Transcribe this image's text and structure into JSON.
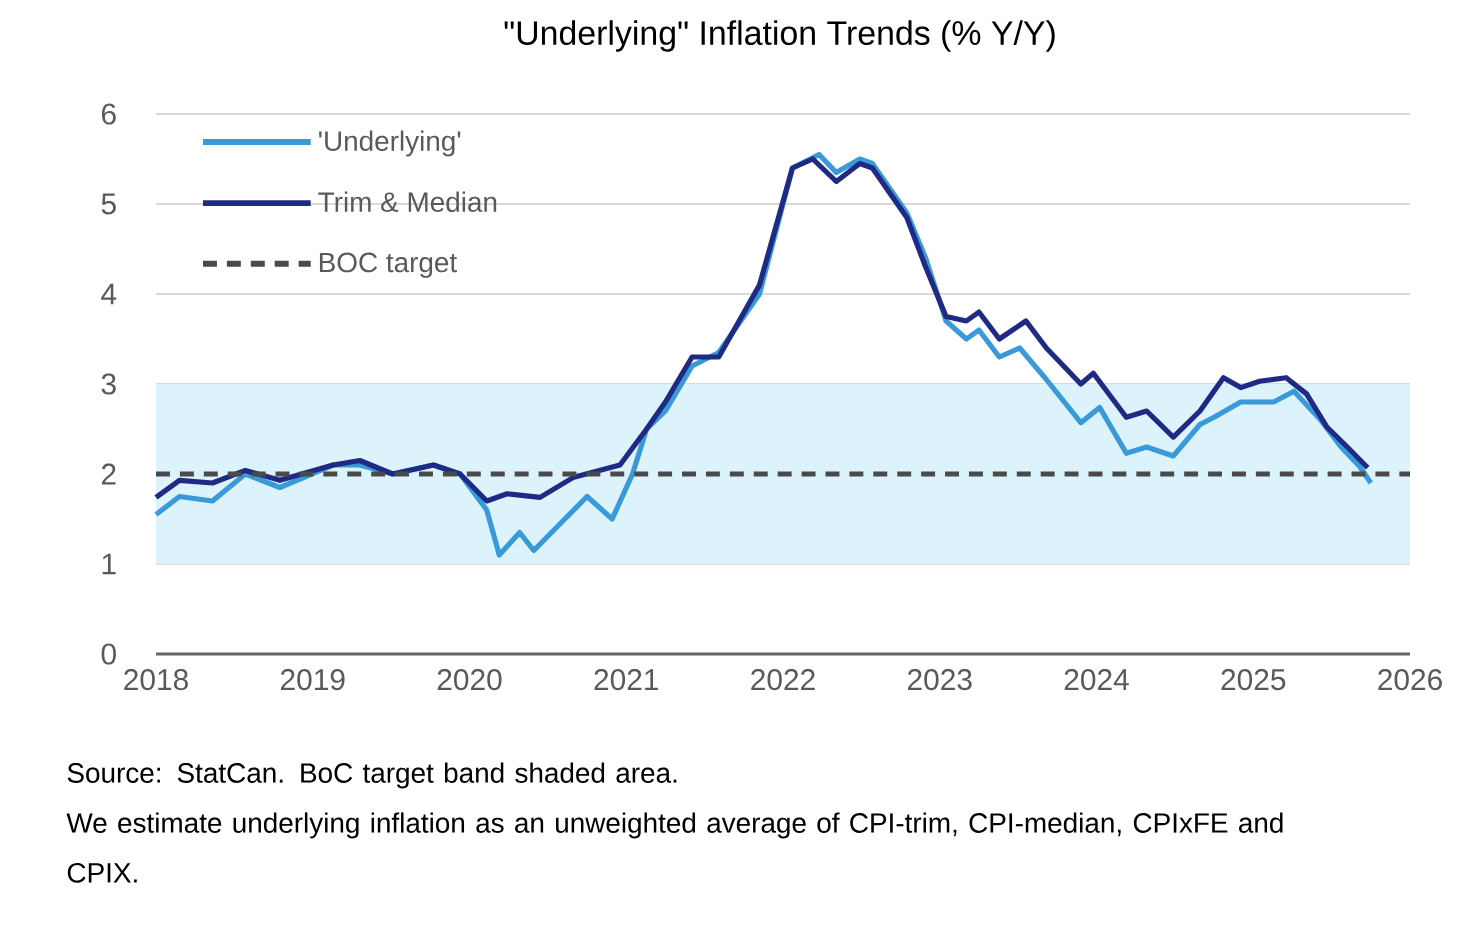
{
  "chart_data": {
    "type": "line",
    "title": "\"Underlying\" Inflation Trends (% Y/Y)",
    "xlim": [
      2018,
      2026
    ],
    "xticks": [
      2018,
      2019,
      2020,
      2021,
      2022,
      2023,
      2024,
      2025,
      2026
    ],
    "ylim": [
      0,
      6
    ],
    "yticks": [
      0,
      1,
      2,
      3,
      4,
      5,
      6
    ],
    "grid": "y",
    "legend": "top left",
    "line_style": "solid",
    "marker": "none",
    "series": [
      {
        "name": "'Underlying'",
        "color": "#3a9ad9",
        "x": [
          2018.0,
          2018.15,
          2018.36,
          2018.57,
          2018.79,
          2019.13,
          2019.3,
          2019.51,
          2019.77,
          2019.94,
          2020.11,
          2020.19,
          2020.32,
          2020.41,
          2020.58,
          2020.75,
          2020.91,
          2021.04,
          2021.13,
          2021.25,
          2021.42,
          2021.59,
          2021.85,
          2022.06,
          2022.23,
          2022.34,
          2022.49,
          2022.57,
          2022.79,
          2022.91,
          2023.04,
          2023.17,
          2023.25,
          2023.38,
          2023.51,
          2023.68,
          2023.9,
          2024.02,
          2024.19,
          2024.32,
          2024.49,
          2024.66,
          2024.75,
          2024.92,
          2025.13,
          2025.26,
          2025.43,
          2025.56,
          2025.68,
          2025.75
        ],
        "values": [
          1.55,
          1.75,
          1.7,
          2.0,
          1.85,
          2.1,
          2.1,
          2.0,
          2.1,
          2.0,
          1.6,
          1.1,
          1.35,
          1.15,
          1.45,
          1.75,
          1.5,
          2.0,
          2.5,
          2.7,
          3.2,
          3.35,
          4.0,
          5.4,
          5.55,
          5.35,
          5.5,
          5.45,
          4.9,
          4.4,
          3.7,
          3.5,
          3.6,
          3.3,
          3.4,
          3.05,
          2.57,
          2.74,
          2.23,
          2.3,
          2.2,
          2.55,
          2.63,
          2.8,
          2.8,
          2.92,
          2.6,
          2.3,
          2.08,
          1.9
        ]
      },
      {
        "name": "Trim & Median",
        "color": "#1f2a85",
        "x": [
          2018.0,
          2018.15,
          2018.36,
          2018.57,
          2018.79,
          2019.13,
          2019.3,
          2019.51,
          2019.77,
          2019.94,
          2020.11,
          2020.24,
          2020.45,
          2020.66,
          2020.96,
          2021.13,
          2021.25,
          2021.42,
          2021.59,
          2021.85,
          2022.06,
          2022.19,
          2022.34,
          2022.49,
          2022.57,
          2022.79,
          2022.91,
          2023.04,
          2023.17,
          2023.25,
          2023.38,
          2023.55,
          2023.68,
          2023.9,
          2023.98,
          2024.19,
          2024.32,
          2024.49,
          2024.66,
          2024.81,
          2024.92,
          2025.04,
          2025.21,
          2025.34,
          2025.47,
          2025.6,
          2025.73
        ],
        "values": [
          1.74,
          1.93,
          1.9,
          2.04,
          1.93,
          2.1,
          2.15,
          2.0,
          2.1,
          2.0,
          1.7,
          1.78,
          1.74,
          1.96,
          2.1,
          2.5,
          2.8,
          3.3,
          3.3,
          4.1,
          5.4,
          5.5,
          5.25,
          5.45,
          5.4,
          4.85,
          4.3,
          3.75,
          3.7,
          3.8,
          3.5,
          3.7,
          3.4,
          3.0,
          3.12,
          2.63,
          2.7,
          2.41,
          2.7,
          3.07,
          2.96,
          3.03,
          3.07,
          2.89,
          2.52,
          2.3,
          2.07
        ]
      }
    ],
    "ref_lines": [
      {
        "axis": "y",
        "value": 2,
        "label": "BOC target",
        "color": "#4a4a4a",
        "line_style": "dashed"
      }
    ],
    "bands": [
      {
        "axis": "y",
        "from": 1,
        "to": 3,
        "color": "#ddf3fb"
      }
    ],
    "annotations": [
      "Source:  StatCan. BoC target band shaded area.",
      "We estimate underlying inflation as an unweighted average of CPI-trim, CPI-median, CPIxFE and CPIX."
    ]
  }
}
